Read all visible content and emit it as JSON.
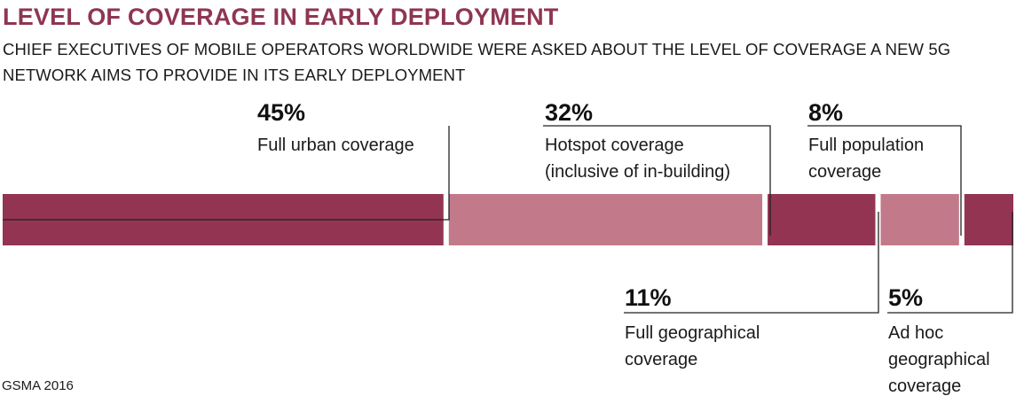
{
  "chart_data": {
    "type": "bar",
    "orientation": "horizontal-stacked",
    "title": "LEVEL OF COVERAGE IN EARLY DEPLOYMENT",
    "subtitle": "CHIEF EXECUTIVES OF MOBILE OPERATORS WORLDWIDE WERE ASKED ABOUT THE LEVEL OF COVERAGE A NEW 5G NETWORK AIMS TO PROVIDE IN ITS EARLY DEPLOYMENT",
    "source": "GSMA 2016",
    "unit": "%",
    "colors": {
      "dark": "#933552",
      "light": "#c27a8b",
      "text_title": "#8e3651"
    },
    "segments": [
      {
        "name": "Full urban coverage",
        "value": 45,
        "label": "45%",
        "lines": [
          "Full urban coverage"
        ],
        "shade": "dark"
      },
      {
        "name": "Hotspot coverage (inclusive of in-building)",
        "value": 32,
        "label": "32%",
        "lines": [
          "Hotspot coverage",
          "(inclusive of in-building)"
        ],
        "shade": "light"
      },
      {
        "name": "Full geographical coverage",
        "value": 11,
        "label": "11%",
        "lines": [
          "Full geographical",
          "coverage"
        ],
        "shade": "dark"
      },
      {
        "name": "Full population coverage",
        "value": 8,
        "label": "8%",
        "lines": [
          "Full population",
          "coverage"
        ],
        "shade": "light"
      },
      {
        "name": "Ad hoc geographical coverage",
        "value": 5,
        "label": "5%",
        "lines": [
          "Ad hoc",
          "geographical",
          "coverage"
        ],
        "shade": "dark"
      }
    ]
  }
}
